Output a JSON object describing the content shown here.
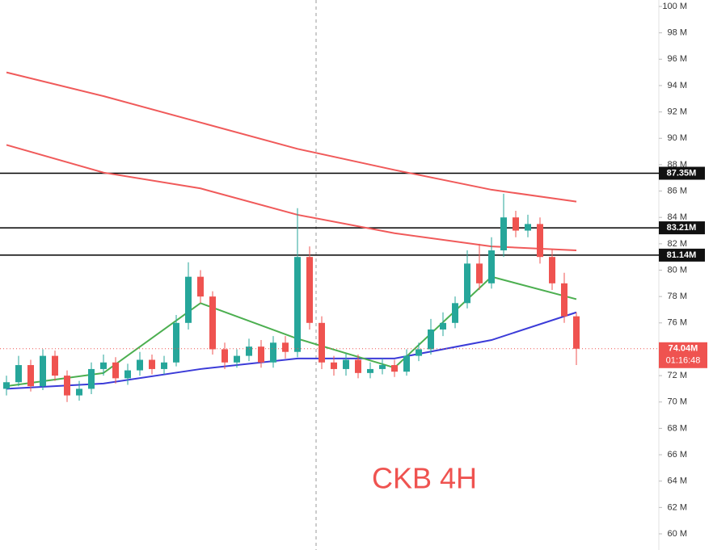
{
  "chart_data": {
    "type": "candlestick",
    "title": "CKB 4H",
    "up_color": "#26a69a",
    "down_color": "#ef5350",
    "open": [
      71,
      71.5,
      72.8,
      71.2,
      73.5,
      72,
      70.5,
      71,
      72.5,
      73,
      71.8,
      72.4,
      73.2,
      72.5,
      73,
      76,
      79.5,
      78,
      74,
      73,
      73.5,
      74.2,
      73,
      74.5,
      73.8,
      81,
      76,
      73,
      72.5,
      73.2,
      72.2,
      72.5,
      72.8,
      72.3,
      73.5,
      74,
      75.5,
      76,
      77.5,
      80.5,
      79,
      81.5,
      84,
      83,
      83.5,
      81,
      79,
      76.5
    ],
    "high": [
      72,
      73.5,
      73.2,
      74,
      73.9,
      72.4,
      71.6,
      73,
      73.6,
      73.4,
      72.9,
      73.8,
      73.6,
      73.5,
      76.6,
      80.6,
      80,
      78.4,
      74.5,
      74,
      74.8,
      74.7,
      75,
      75,
      84.7,
      81.8,
      76.5,
      73.5,
      73.7,
      73.6,
      73,
      73.3,
      73.2,
      74,
      74.5,
      76.3,
      76.8,
      78,
      81.5,
      82,
      82.5,
      85.8,
      84.5,
      84.2,
      84,
      81.6,
      79.8,
      76.8
    ],
    "low": [
      70.5,
      71.2,
      70.8,
      70.9,
      71.6,
      70,
      70.1,
      70.6,
      72,
      71.4,
      71.3,
      72,
      72.1,
      72.1,
      72.7,
      75.5,
      77.5,
      73.6,
      72.5,
      72.6,
      73.1,
      72.6,
      72.6,
      73.3,
      73.4,
      75.5,
      72.5,
      72,
      72,
      71.8,
      71.8,
      72.1,
      71.9,
      72,
      73.1,
      73.6,
      75,
      75.6,
      77.1,
      78.5,
      78.6,
      81,
      82.5,
      82.5,
      80.5,
      78.5,
      76,
      72.8
    ],
    "close": [
      71.5,
      72.8,
      71.2,
      73.5,
      72,
      70.5,
      71,
      72.5,
      73,
      71.8,
      72.4,
      73.2,
      72.5,
      73,
      76,
      79.5,
      78,
      74,
      73,
      73.5,
      74.2,
      73,
      74.5,
      73.8,
      81,
      76,
      73,
      72.5,
      73.2,
      72.2,
      72.5,
      72.8,
      72.3,
      73.5,
      74,
      75.5,
      76,
      77.5,
      80.5,
      79,
      81.5,
      84,
      83,
      83.5,
      81,
      79,
      76.5,
      74.04
    ],
    "lines": [
      {
        "color": "#f05a5a",
        "x": [
          0,
          8,
          16,
          24,
          32,
          40,
          47
        ],
        "values": [
          95,
          93.2,
          91.2,
          89.2,
          87.6,
          86.1,
          85.2
        ]
      },
      {
        "color": "#f05a5a",
        "x": [
          0,
          8,
          16,
          24,
          32,
          40,
          47
        ],
        "values": [
          89.5,
          87.4,
          86.2,
          84.2,
          82.8,
          81.8,
          81.5
        ]
      },
      {
        "color": "#3b3bd8",
        "x": [
          0,
          8,
          16,
          24,
          32,
          40,
          47
        ],
        "values": [
          71,
          71.4,
          72.5,
          73.3,
          73.3,
          74.7,
          76.8
        ]
      },
      {
        "color": "#4caf50",
        "x": [
          0,
          8,
          16,
          24,
          32,
          40,
          47
        ],
        "values": [
          71.2,
          72.2,
          77.5,
          74.8,
          72.6,
          79.5,
          77.8
        ]
      }
    ],
    "levels": [
      {
        "value": 87.35,
        "label": "87.35M"
      },
      {
        "value": 83.21,
        "label": "83.21M"
      },
      {
        "value": 81.14,
        "label": "81.14M"
      }
    ],
    "current_price": {
      "value": 74.04,
      "label": "74.04M"
    },
    "countdown": "01:16:48",
    "ylim": [
      60,
      100
    ],
    "yticks": [
      {
        "value": 60,
        "label": "60 M"
      },
      {
        "value": 62,
        "label": "62 M"
      },
      {
        "value": 64,
        "label": "64 M"
      },
      {
        "value": 66,
        "label": "66 M"
      },
      {
        "value": 68,
        "label": "68 M"
      },
      {
        "value": 70,
        "label": "70 M"
      },
      {
        "value": 72,
        "label": "72 M"
      },
      {
        "value": 74,
        "label": "74 M"
      },
      {
        "value": 76,
        "label": "76 M"
      },
      {
        "value": 78,
        "label": "78 M"
      },
      {
        "value": 80,
        "label": "80 M"
      },
      {
        "value": 82,
        "label": "82 M"
      },
      {
        "value": 84,
        "label": "84 M"
      },
      {
        "value": 86,
        "label": "86 M"
      },
      {
        "value": 88,
        "label": "88 M"
      },
      {
        "value": 90,
        "label": "90 M"
      },
      {
        "value": 92,
        "label": "92 M"
      },
      {
        "value": 94,
        "label": "94 M"
      },
      {
        "value": 96,
        "label": "96 M"
      },
      {
        "value": 98,
        "label": "98 M"
      },
      {
        "value": 100,
        "label": "100 M"
      }
    ]
  }
}
